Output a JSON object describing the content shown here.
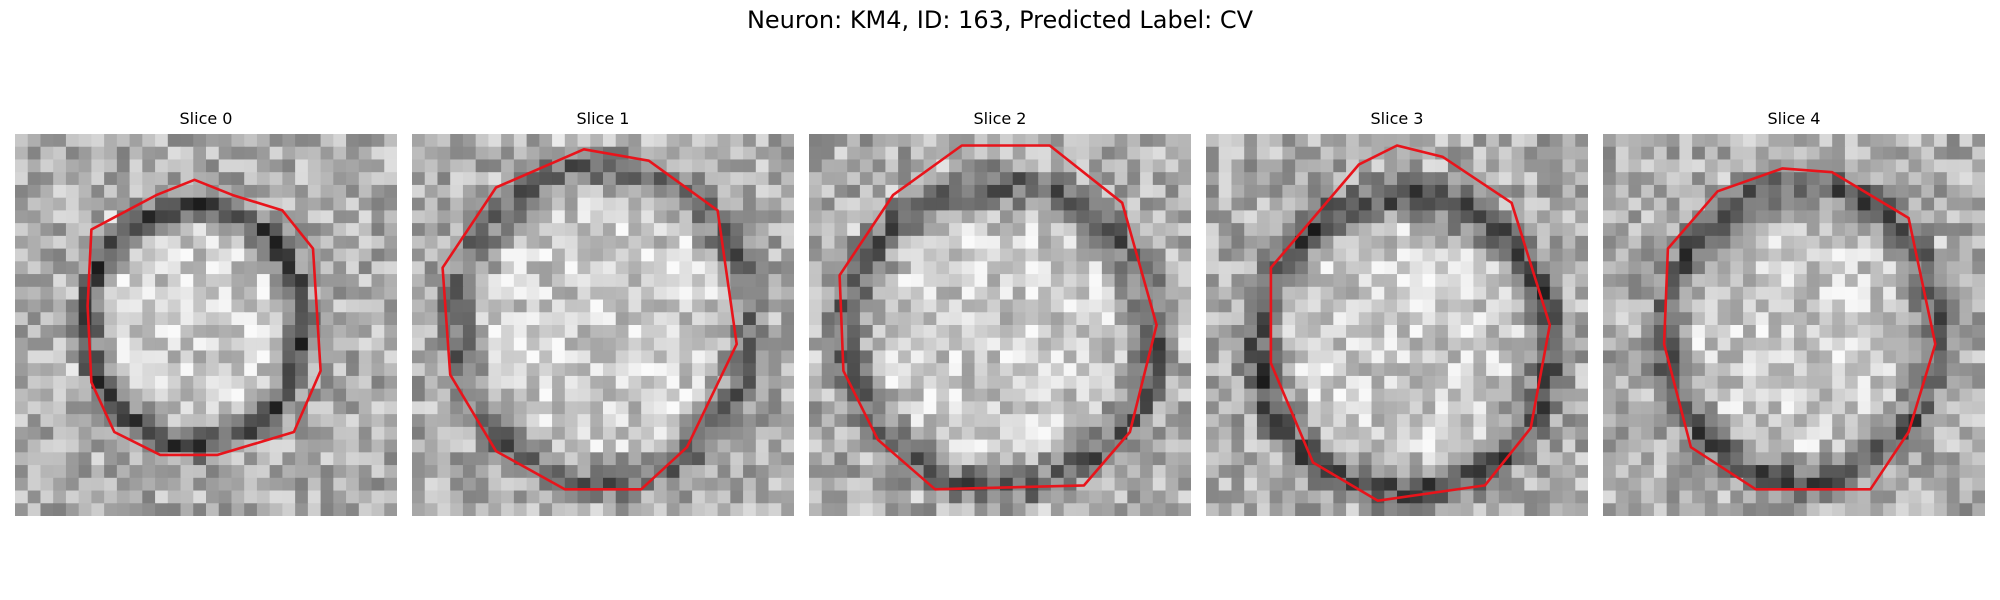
{
  "figure": {
    "title": "Neuron: KM4, ID: 163, Predicted Label: CV",
    "contour_color": "#e8141b"
  },
  "slices": [
    {
      "label": "Slice 0"
    },
    {
      "label": "Slice 1"
    },
    {
      "label": "Slice 2"
    },
    {
      "label": "Slice 3"
    },
    {
      "label": "Slice 4"
    }
  ]
}
